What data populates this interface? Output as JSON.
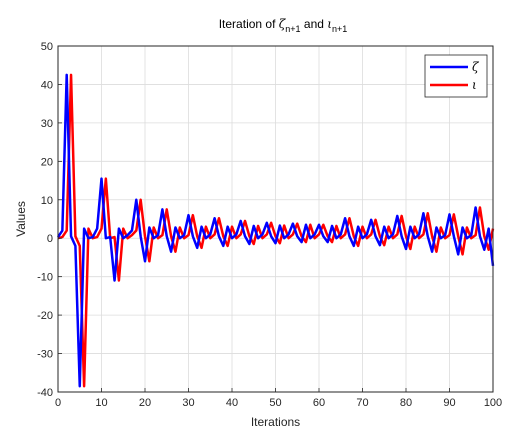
{
  "chart_data": {
    "type": "line",
    "title": {
      "prefix": "Iteration of ",
      "sym1": "ζ",
      "sub1": "n+1",
      "mid": " and ",
      "sym2": "ι",
      "sub2": "n+1"
    },
    "xlabel": "Iterations",
    "ylabel": "Values",
    "xlim": [
      0,
      100
    ],
    "ylim": [
      -40,
      50
    ],
    "xticks": [
      0,
      10,
      20,
      30,
      40,
      50,
      60,
      70,
      80,
      90,
      100
    ],
    "yticks": [
      -40,
      -30,
      -20,
      -10,
      0,
      10,
      20,
      30,
      40,
      50
    ],
    "grid": true,
    "legend_position": "top-right",
    "series": [
      {
        "name": "ζ",
        "color": "#0000ff",
        "x": [
          0,
          1,
          2,
          3,
          4,
          5,
          6,
          7,
          8,
          9,
          10,
          11,
          12,
          13,
          14,
          15,
          16,
          17,
          18,
          19,
          20,
          21,
          22,
          23,
          24,
          25,
          26,
          27,
          28,
          29,
          30,
          31,
          32,
          33,
          34,
          35,
          36,
          37,
          38,
          39,
          40,
          41,
          42,
          43,
          44,
          45,
          46,
          47,
          48,
          49,
          50,
          51,
          52,
          53,
          54,
          55,
          56,
          57,
          58,
          59,
          60,
          61,
          62,
          63,
          64,
          65,
          66,
          67,
          68,
          69,
          70,
          71,
          72,
          73,
          74,
          75,
          76,
          77,
          78,
          79,
          80,
          81,
          82,
          83,
          84,
          85,
          86,
          87,
          88,
          89,
          90,
          91,
          92,
          93,
          94,
          95,
          96,
          97,
          98,
          99,
          100
        ],
        "values": [
          0.3,
          2,
          42.5,
          0.5,
          -2,
          -38.5,
          2.5,
          0,
          0.3,
          2.5,
          15.5,
          0,
          0.3,
          -11,
          2.5,
          0,
          0.8,
          2,
          10,
          0.5,
          -6,
          2.8,
          0,
          0.8,
          7.5,
          0.5,
          -3.5,
          2.8,
          0,
          0.8,
          6,
          0.5,
          -2.5,
          3,
          0,
          1,
          5.2,
          0.5,
          -2,
          3,
          0,
          1,
          4.5,
          0.5,
          -1.5,
          3.2,
          0,
          1,
          4,
          0.5,
          -1.3,
          3.3,
          0,
          1,
          3.8,
          0.5,
          -1,
          3.5,
          0,
          1,
          3.5,
          0.5,
          -1,
          3.2,
          0,
          1,
          5.2,
          0.5,
          -2,
          3,
          0,
          1,
          4.8,
          0.5,
          -1.8,
          3,
          0,
          1,
          5.8,
          0.5,
          -2.8,
          3,
          0,
          1,
          6.5,
          0.5,
          -3.5,
          2.8,
          0,
          0.8,
          6.2,
          0.5,
          -4.2,
          2.8,
          0,
          0.8,
          8,
          0.5,
          -3,
          2.5,
          -7.2
        ]
      },
      {
        "name": "ι",
        "color": "#ff0000",
        "x": [
          0,
          1,
          2,
          3,
          4,
          5,
          6,
          7,
          8,
          9,
          10,
          11,
          12,
          13,
          14,
          15,
          16,
          17,
          18,
          19,
          20,
          21,
          22,
          23,
          24,
          25,
          26,
          27,
          28,
          29,
          30,
          31,
          32,
          33,
          34,
          35,
          36,
          37,
          38,
          39,
          40,
          41,
          42,
          43,
          44,
          45,
          46,
          47,
          48,
          49,
          50,
          51,
          52,
          53,
          54,
          55,
          56,
          57,
          58,
          59,
          60,
          61,
          62,
          63,
          64,
          65,
          66,
          67,
          68,
          69,
          70,
          71,
          72,
          73,
          74,
          75,
          76,
          77,
          78,
          79,
          80,
          81,
          82,
          83,
          84,
          85,
          86,
          87,
          88,
          89,
          90,
          91,
          92,
          93,
          94,
          95,
          96,
          97,
          98,
          99,
          100
        ],
        "values": [
          0,
          0.3,
          2,
          42.5,
          0.5,
          -2,
          -38.5,
          2.5,
          0,
          0.3,
          2.5,
          15.5,
          0,
          0.3,
          -11,
          2.5,
          0,
          0.8,
          2,
          10,
          0.5,
          -6,
          2.8,
          0,
          0.8,
          7.5,
          0.5,
          -3.5,
          2.8,
          0,
          0.8,
          6,
          0.5,
          -2.5,
          3,
          0,
          1,
          5.2,
          0.5,
          -2,
          3,
          0,
          1,
          4.5,
          0.5,
          -1.5,
          3.2,
          0,
          1,
          4,
          0.5,
          -1.3,
          3.3,
          0,
          1,
          3.8,
          0.5,
          -1,
          3.5,
          0,
          1,
          3.5,
          0.5,
          -1,
          3.2,
          0,
          1,
          5.2,
          0.5,
          -2,
          3,
          0,
          1,
          4.8,
          0.5,
          -1.8,
          3,
          0,
          1,
          5.8,
          0.5,
          -2.8,
          3,
          0,
          1,
          6.5,
          0.5,
          -3.5,
          2.8,
          0,
          0.8,
          6.2,
          0.5,
          -4.2,
          2.8,
          0,
          0.8,
          8,
          0.5,
          -3,
          2.5
        ]
      }
    ]
  }
}
